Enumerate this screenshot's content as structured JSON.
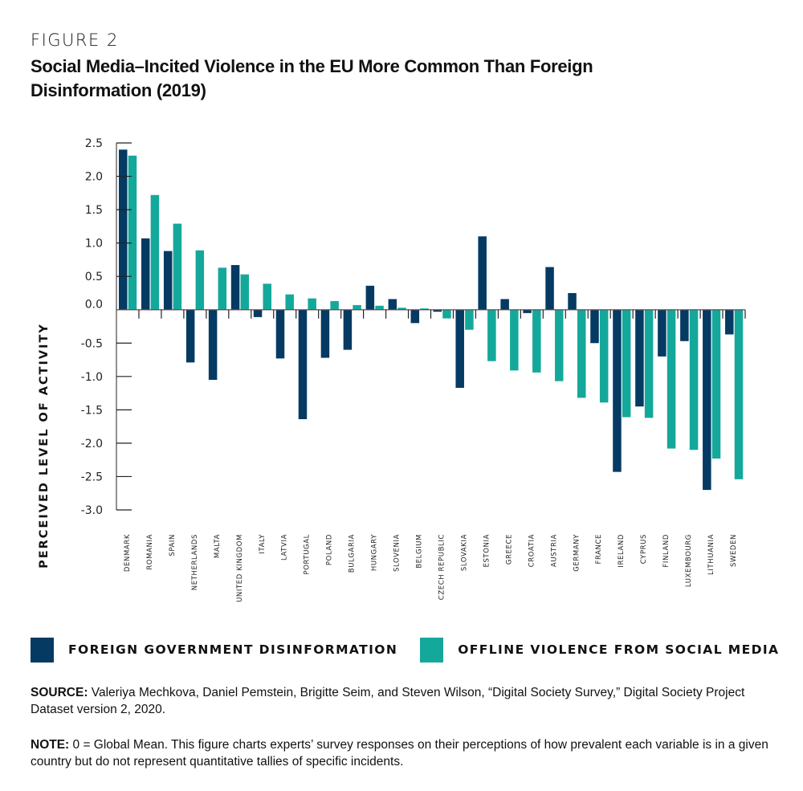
{
  "figure_label": "FIGURE 2",
  "title": "Social Media–Incited Violence in the EU More Common Than Foreign Disinformation (2019)",
  "colors": {
    "foreign_disinformation": "#053a63",
    "offline_violence": "#14a89b",
    "axis": "#6b6b6b"
  },
  "legend": [
    {
      "label": "FOREIGN GOVERNMENT DISINFORMATION",
      "color": "#053a63"
    },
    {
      "label": "OFFLINE VIOLENCE FROM SOCIAL MEDIA",
      "color": "#14a89b"
    }
  ],
  "source": {
    "label": "SOURCE:",
    "text": " Valeriya Mechkova, Daniel Pemstein, Brigitte Seim, and Steven Wilson, “Digital Society Survey,” Digital Society Project Dataset version 2, 2020."
  },
  "note": {
    "label": "NOTE:",
    "text": " 0 = Global Mean. This figure charts experts’ survey responses on their perceptions of how prevalent each variable is in a given country but do not represent quantitative tallies of specific incidents."
  },
  "chart_data": {
    "type": "bar",
    "title": "Social Media–Incited Violence in the EU More Common Than Foreign Disinformation (2019)",
    "xlabel": "",
    "ylabel": "PERCEIVED LEVEL OF ACTIVITY",
    "ylim": [
      -3.0,
      2.5
    ],
    "yticks": [
      2.5,
      2.0,
      1.5,
      1.0,
      0.5,
      0.0,
      -0.5,
      -1.0,
      -1.5,
      -2.0,
      -2.5,
      -3.0
    ],
    "ytick_labels": [
      "2.5",
      "2.0",
      "1.5",
      "1.0",
      "0.5",
      "0.0",
      "-0.5",
      "-1.0",
      "-1.5",
      "-2.0",
      "-2.5",
      "-3.0"
    ],
    "grid": false,
    "legend_position": "bottom",
    "categories": [
      "DENMARK",
      "ROMANIA",
      "SPAIN",
      "NETHERLANDS",
      "MALTA",
      "UNITED KINGDOM",
      "ITALY",
      "LATVIA",
      "PORTUGAL",
      "POLAND",
      "BULGARIA",
      "HUNGARY",
      "SLOVENIA",
      "BELGIUM",
      "CZECH REPUBLIC",
      "SLOVAKIA",
      "ESTONIA",
      "GREECE",
      "CROATIA",
      "AUSTRIA",
      "GERMANY",
      "FRANCE",
      "IRELAND",
      "CYPRUS",
      "FINLAND",
      "LUXEMBOURG",
      "LITHUANIA",
      "SWEDEN"
    ],
    "series": [
      {
        "name": "FOREIGN GOVERNMENT DISINFORMATION",
        "color": "#053a63",
        "values": [
          2.4,
          1.07,
          0.88,
          -0.79,
          -1.05,
          0.67,
          -0.11,
          -0.73,
          -1.64,
          -0.72,
          -0.6,
          0.36,
          0.16,
          -0.2,
          -0.03,
          -1.17,
          1.1,
          0.16,
          -0.05,
          0.64,
          0.25,
          -0.5,
          -2.43,
          -1.45,
          -0.7,
          -0.47,
          -2.7,
          -0.37
        ]
      },
      {
        "name": "OFFLINE VIOLENCE FROM SOCIAL MEDIA",
        "color": "#14a89b",
        "values": [
          2.31,
          1.72,
          1.29,
          0.89,
          0.63,
          0.53,
          0.39,
          0.23,
          0.17,
          0.13,
          0.07,
          0.06,
          0.03,
          0.02,
          -0.13,
          -0.3,
          -0.77,
          -0.91,
          -0.94,
          -1.07,
          -1.32,
          -1.39,
          -1.61,
          -1.62,
          -2.08,
          -2.1,
          -2.23,
          -2.54
        ]
      }
    ]
  }
}
